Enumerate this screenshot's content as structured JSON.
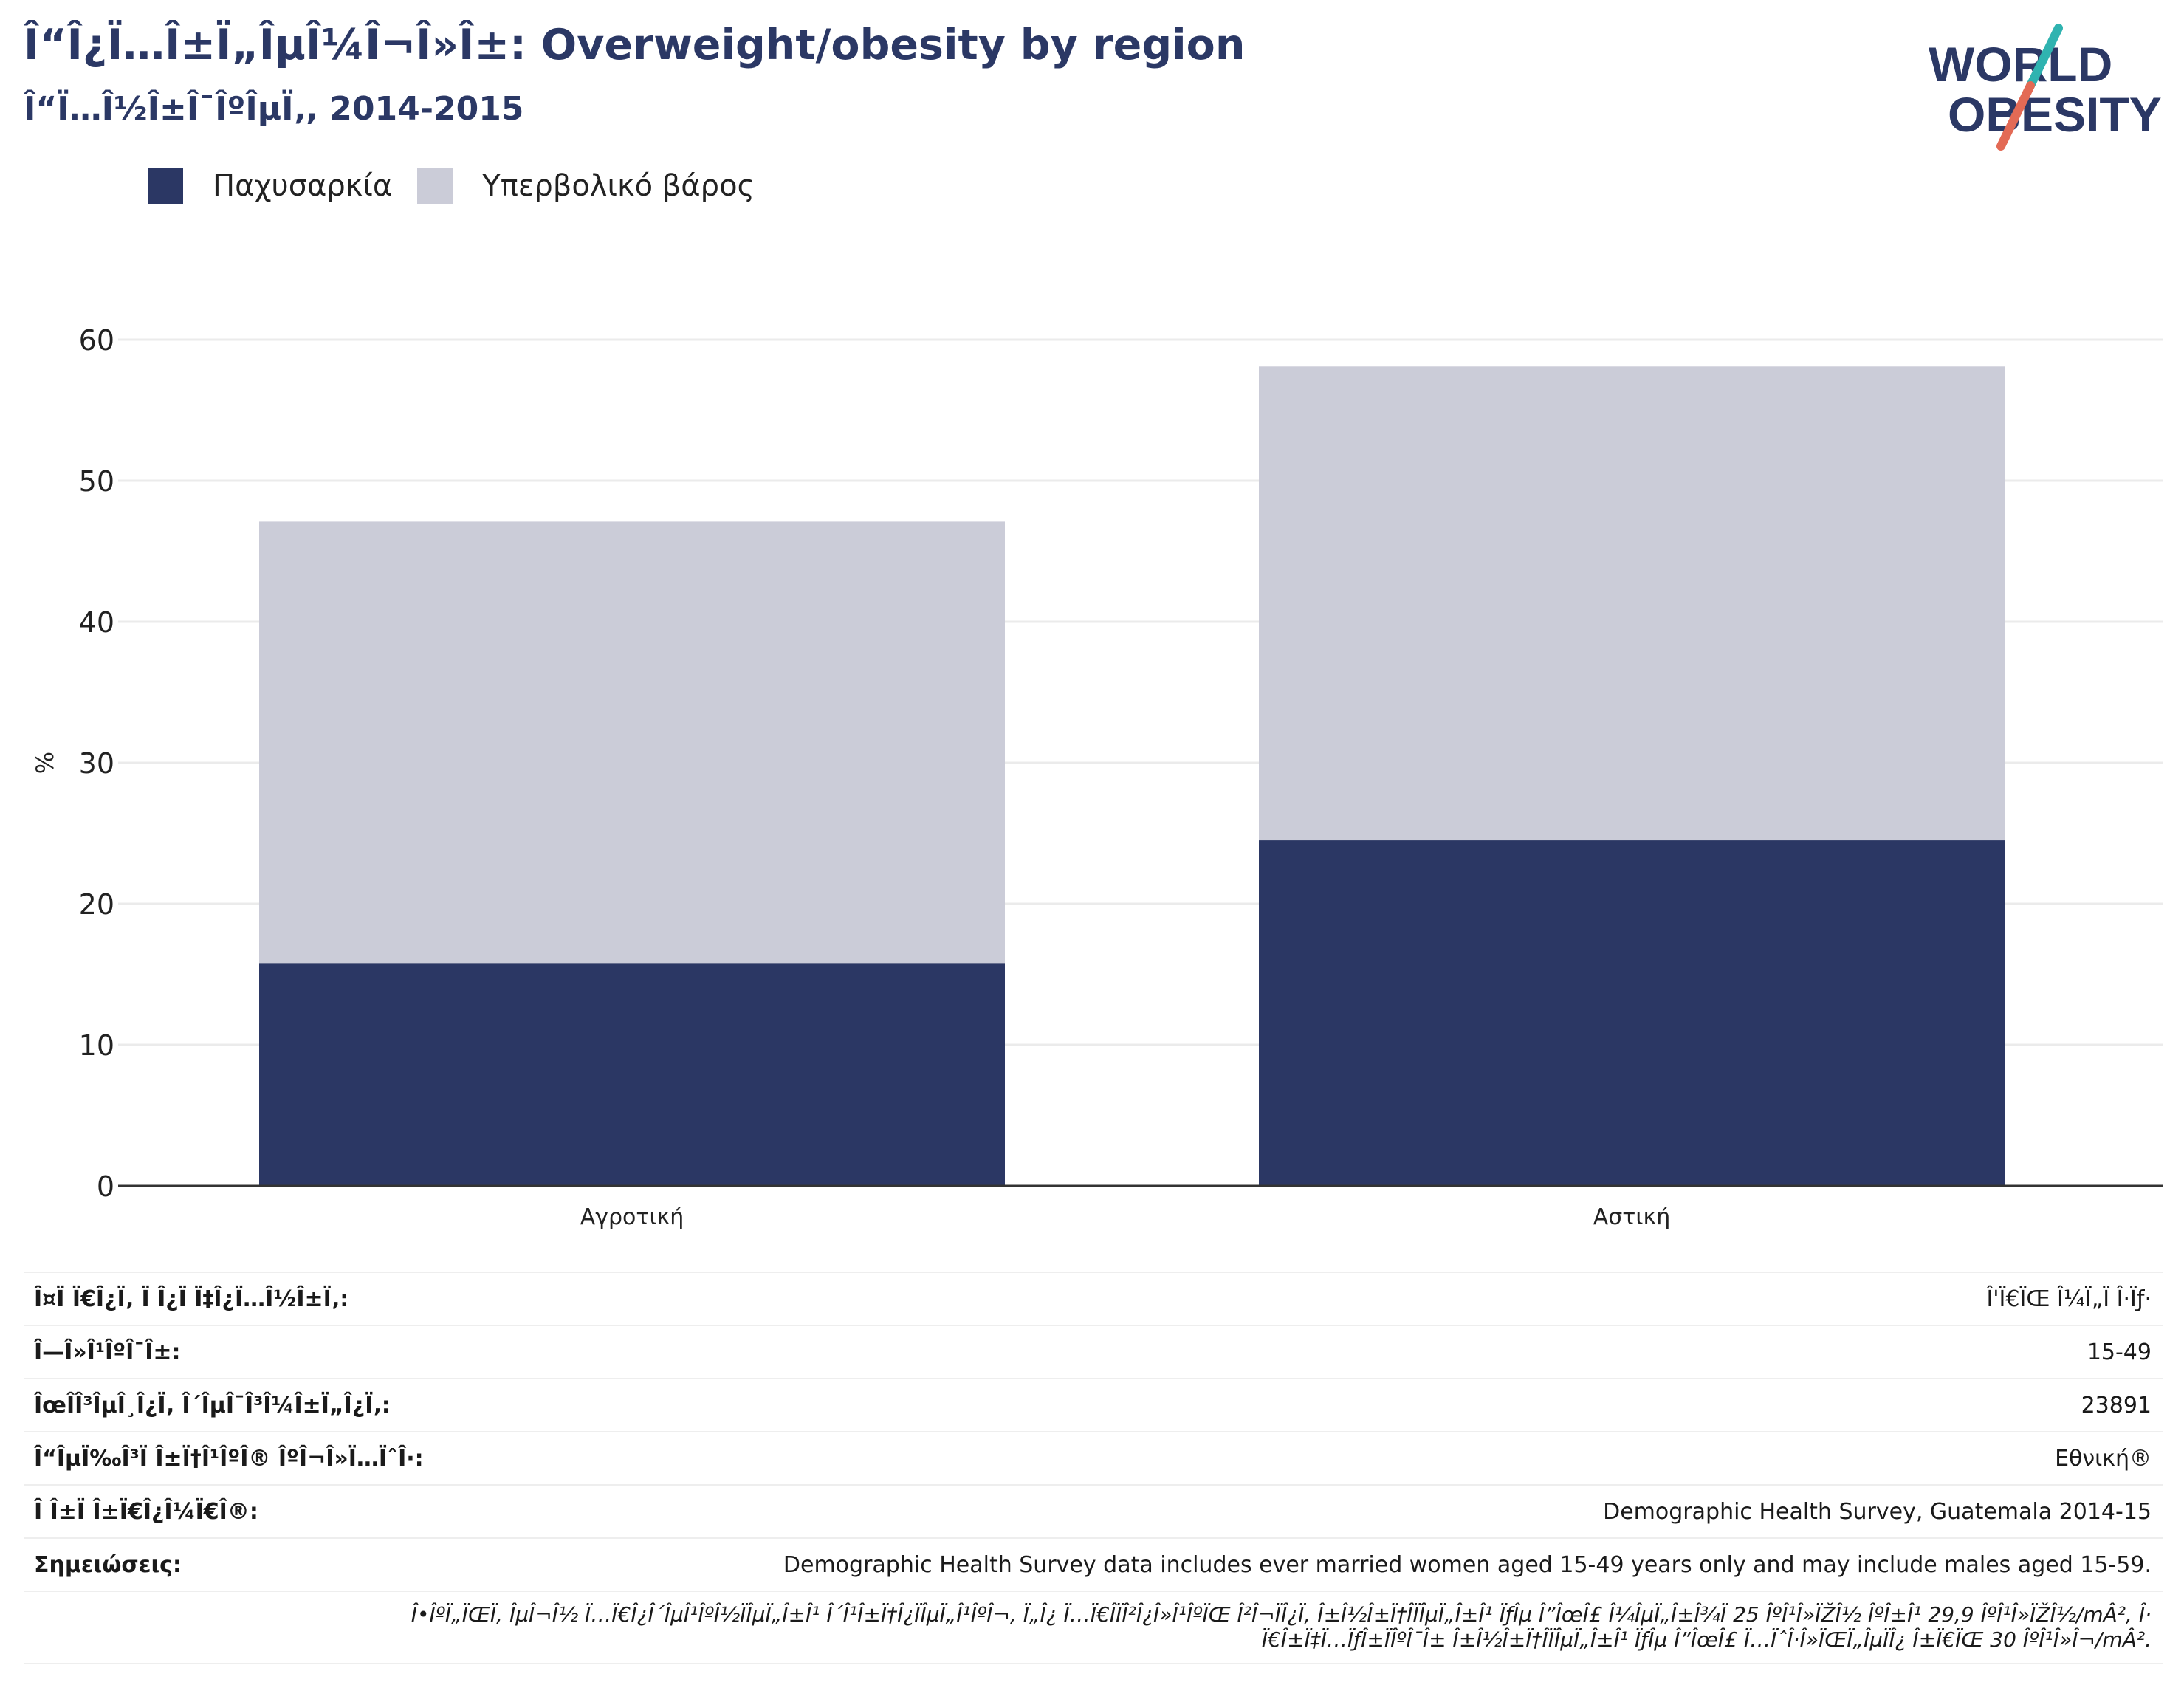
{
  "title": "Î“Î¿Ï…Î±Ï„ÎµÎ¼Î¬Î»Î±: Overweight/obesity by region",
  "subtitle": "Î“Ï…Î½Î±Î¯ÎºÎµÏ‚, 2014-2015",
  "logo": {
    "line1": "WORLD",
    "line2": "OBESITY"
  },
  "colors": {
    "obesity": "#2b3764",
    "overweight": "#cbccd8",
    "title": "#2b3865",
    "logo_slash_top": "#2fb3b0",
    "logo_slash_bottom": "#e36a55"
  },
  "chart_data": {
    "type": "bar",
    "stacked": true,
    "categories": [
      "Αγροτική",
      "Αστική"
    ],
    "series": [
      {
        "name": "Παχυσαρκία",
        "values": [
          15.8,
          24.5
        ]
      },
      {
        "name": "Υπερβολικό βάρος",
        "values": [
          31.3,
          33.6
        ]
      }
    ],
    "ylabel": "%",
    "ylim": [
      0,
      60
    ],
    "yticks": [
      "0",
      "10",
      "20",
      "30",
      "40",
      "50",
      "60"
    ],
    "grid": true,
    "legend": "top-left"
  },
  "info": [
    {
      "label": "Î¤Ï Ï€Î¿Ï‚ Ï Î¿Ï Ï‡Î¿Ï…Î½Î±Ï‚:",
      "value": "Î'Ï€ÏŒ Î¼Ï„Ï Î·Ïƒ·"
    },
    {
      "label": "Î—Î»Î¹ÎºÎ¯Î±:",
      "value": "15-49"
    },
    {
      "label": "ÎœÎ­Î³ÎµÎ¸Î¿Ï‚ Î´ÎµÎ¯Î³Î¼Î±Ï„Î¿Ï‚:",
      "value": "23891"
    },
    {
      "label": "Î“ÎµÏ‰Î³Ï Î±Ï†Î¹ÎºÎ® ÎºÎ¬Î»Ï…ÏˆÎ·:",
      "value": "Εθνική®"
    },
    {
      "label": "Î Î±Ï Î±Ï€Î¿Î¼Ï€Î®:",
      "value": "Demographic Health Survey, Guatemala 2014-15"
    },
    {
      "label": "Σημειώσεις:",
      "value": "Demographic Health Survey data includes ever married women aged 15-49 years only and may include males aged 15-59."
    }
  ],
  "footnote": {
    "line1": "Î•ÎºÏ„ÏŒÏ‚ ÎµÎ¬Î½ Ï…Ï€Î¿Î´ÎµÎ¹ÎºÎ½ÏÎµÏ„Î±Î¹ Î´Î¹Î±Ï†Î¿ÏÎµÏ„Î¹ÎºÎ¬, Ï„Î¿ Ï…Ï€Î­ÏÎ²Î¿Î»Î¹ÎºÏŒ Î²Î¬ÏÎ¿Ï‚ Î±Î½Î±Ï†Î­ÏÎµÏ„Î±Î¹ ÏƒÎµ Î”ÎœÎ£ Î¼ÎµÏ„Î±Î¾Ï 25 ÎºÎ¹Î»ÏŽÎ½ ÎºÎ±Î¹ 29,9 ÎºÎ¹Î»ÏŽÎ½/mÂ², Î·",
    "line2": "Ï€Î±Ï‡Ï…ÏƒÎ±ÏÎºÎ¯Î± Î±Î½Î±Ï†Î­ÏÎµÏ„Î±Î¹ ÏƒÎµ Î”ÎœÎ£ Ï…ÏˆÎ·Î»ÏŒÏ„ÎµÏÎ¿ Î±Ï€ÏŒ 30 ÎºÎ¹Î»Î¬/mÂ²."
  }
}
